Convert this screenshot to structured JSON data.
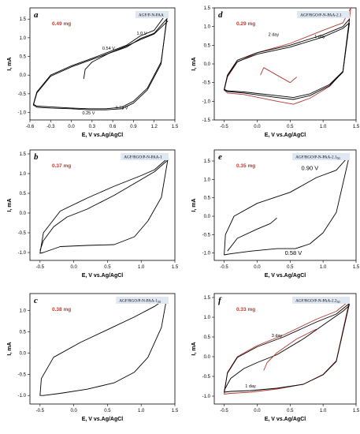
{
  "chart_data": [
    {
      "id": "a",
      "type": "line",
      "panel_label": "a",
      "title": "AGF/P-N-PAA",
      "mass_label": "0.49 mg",
      "xlabel": "E, V vs.Ag/AgCl",
      "ylabel": "I, mA",
      "xlim": [
        -0.6,
        1.5
      ],
      "ylim": [
        -1.2,
        1.8
      ],
      "xticks": [
        "-0.6",
        "-0.3",
        "0.0",
        "0.3",
        "0.6",
        "0.9",
        "1.2",
        "1.5"
      ],
      "xtick_values": [
        -0.6,
        -0.3,
        0.0,
        0.3,
        0.6,
        0.9,
        1.2,
        1.5
      ],
      "yticks": [
        "-1.0",
        "-0.5",
        "0.0",
        "0.5",
        "1.0",
        "1.5"
      ],
      "ytick_values": [
        -1.0,
        -0.5,
        0.0,
        0.5,
        1.0,
        1.5
      ],
      "annotations": [
        {
          "text": "1.0 V",
          "x": 1.02,
          "y": 1.08
        },
        {
          "text": "0.54 V",
          "x": 0.54,
          "y": 0.68
        },
        {
          "text": "0.73 V",
          "x": 0.73,
          "y": -0.92
        },
        {
          "text": "0.25 V",
          "x": 0.25,
          "y": -1.05
        }
      ],
      "series": [
        {
          "color": "#000000",
          "x": [
            1.4,
            1.2,
            1.0,
            0.8,
            0.54,
            0.3,
            0.0,
            -0.3,
            -0.5,
            -0.55,
            -0.5,
            -0.3,
            0.0,
            0.25,
            0.5,
            0.73,
            0.9,
            1.1,
            1.3,
            1.4
          ],
          "y": [
            1.7,
            1.2,
            1.05,
            0.8,
            0.62,
            0.45,
            0.25,
            0.0,
            -0.45,
            -0.78,
            -0.83,
            -0.85,
            -0.88,
            -0.9,
            -0.9,
            -0.86,
            -0.7,
            -0.35,
            0.35,
            1.7
          ]
        },
        {
          "color": "#000000",
          "x": [
            1.38,
            1.2,
            1.0,
            0.8,
            0.54,
            0.3,
            0.0,
            -0.3,
            -0.5,
            -0.55,
            -0.5,
            -0.3,
            0.0,
            0.25,
            0.5,
            0.73,
            0.9,
            1.1,
            1.3,
            1.38
          ],
          "y": [
            1.5,
            1.12,
            0.98,
            0.75,
            0.58,
            0.42,
            0.22,
            -0.03,
            -0.48,
            -0.8,
            -0.86,
            -0.88,
            -0.9,
            -0.93,
            -0.93,
            -0.9,
            -0.75,
            -0.4,
            0.3,
            1.5
          ]
        },
        {
          "color": "#000000",
          "x": [
            0.18,
            0.2,
            0.3,
            0.54,
            0.8,
            1.0,
            1.2,
            1.4
          ],
          "y": [
            -0.1,
            0.15,
            0.35,
            0.58,
            0.78,
            0.95,
            1.1,
            1.45
          ]
        }
      ]
    },
    {
      "id": "b",
      "type": "line",
      "panel_label": "b",
      "title": "AGF/RGO/P-N-PAA-1",
      "mass_label": "0.37 mg",
      "xlabel": "E, V vs.Ag/AgCl",
      "ylabel": "I, mA",
      "xlim": [
        -0.65,
        1.5
      ],
      "ylim": [
        -1.2,
        1.6
      ],
      "xticks": [
        "-0.5",
        "0.0",
        "0.5",
        "1.0",
        "1.5"
      ],
      "xtick_values": [
        -0.5,
        0.0,
        0.5,
        1.0,
        1.5
      ],
      "yticks": [
        "-1.0",
        "-0.5",
        "0.0",
        "0.5",
        "1.0",
        "1.5"
      ],
      "ytick_values": [
        -1.0,
        -0.5,
        0.0,
        0.5,
        1.0,
        1.5
      ],
      "annotations": [],
      "series": [
        {
          "color": "#000000",
          "x": [
            1.4,
            1.2,
            1.0,
            0.6,
            0.2,
            -0.2,
            -0.45,
            -0.5,
            -0.45,
            -0.2,
            0.2,
            0.6,
            0.9,
            1.1,
            1.3,
            1.4
          ],
          "y": [
            1.4,
            1.1,
            0.95,
            0.68,
            0.38,
            0.05,
            -0.5,
            -1.02,
            -1.0,
            -0.85,
            -0.82,
            -0.8,
            -0.6,
            -0.2,
            0.4,
            1.4
          ]
        },
        {
          "color": "#000000",
          "x": [
            -0.5,
            -0.45,
            -0.3,
            -0.1,
            0.2,
            0.6,
            1.0,
            1.2,
            1.4
          ],
          "y": [
            -0.95,
            -0.7,
            -0.35,
            -0.1,
            0.1,
            0.45,
            0.85,
            1.05,
            1.35
          ]
        }
      ]
    },
    {
      "id": "c",
      "type": "line",
      "panel_label": "c",
      "title": "AGF/RGO/P-N-PAA-1",
      "title_sub": "50",
      "mass_label": "0.38 mg",
      "xlabel": "E, V vs.Ag/AgCl",
      "ylabel": "I, mA",
      "xlim": [
        -0.65,
        1.5
      ],
      "ylim": [
        -1.2,
        1.4
      ],
      "xticks": [
        "-0.5",
        "0.0",
        "0.5",
        "1.0",
        "1.5"
      ],
      "xtick_values": [
        -0.5,
        0.0,
        0.5,
        1.0,
        1.5
      ],
      "yticks": [
        "-1.0",
        "-0.5",
        "0.0",
        "0.5",
        "1.0"
      ],
      "ytick_values": [
        -1.0,
        -0.5,
        0.0,
        0.5,
        1.0
      ],
      "annotations": [],
      "series": [
        {
          "color": "#000000",
          "x": [
            1.38,
            1.2,
            0.9,
            0.5,
            0.1,
            -0.3,
            -0.48,
            -0.5,
            -0.45,
            -0.2,
            0.2,
            0.6,
            0.9,
            1.1,
            1.3,
            1.38
          ],
          "y": [
            1.3,
            1.1,
            0.85,
            0.55,
            0.25,
            -0.1,
            -0.6,
            -1.0,
            -1.0,
            -0.95,
            -0.85,
            -0.7,
            -0.45,
            -0.1,
            0.6,
            1.3
          ]
        }
      ]
    },
    {
      "id": "d",
      "type": "line",
      "panel_label": "d",
      "title": "AGF/RGO/P-N-PAA-2.1",
      "mass_label": "0.29 mg",
      "xlabel": "E, V vs.Ag/AgCl",
      "ylabel": "I, mA",
      "xlim": [
        -0.65,
        1.5
      ],
      "ylim": [
        -1.5,
        1.5
      ],
      "xticks": [
        "-0.5",
        "0.0",
        "0.5",
        "1.0",
        "1.5"
      ],
      "xtick_values": [
        -0.5,
        0.0,
        0.5,
        1.0,
        1.5
      ],
      "yticks": [
        "-1.5",
        "-1.0",
        "-0.5",
        "0.0",
        "0.5",
        "1.0",
        "1.5"
      ],
      "ytick_values": [
        -1.5,
        -1.0,
        -0.5,
        0.0,
        0.5,
        1.0,
        1.5
      ],
      "annotations": [
        {
          "text": "2 day",
          "x": 0.25,
          "y": 0.75
        },
        {
          "text": "1 day",
          "x": 0.95,
          "y": 0.7
        }
      ],
      "series": [
        {
          "color": "#b03a2e",
          "x": [
            1.42,
            1.3,
            1.0,
            0.5,
            0.0,
            -0.3,
            -0.45,
            -0.5,
            -0.45,
            -0.2,
            0.3,
            0.55,
            0.8,
            1.1,
            1.3,
            1.42
          ],
          "y": [
            1.5,
            1.1,
            0.9,
            0.55,
            0.3,
            0.05,
            -0.35,
            -0.7,
            -0.78,
            -0.82,
            -1.0,
            -1.08,
            -0.92,
            -0.6,
            -0.2,
            1.5
          ]
        },
        {
          "color": "#000000",
          "x": [
            1.4,
            1.3,
            1.0,
            0.5,
            0.0,
            -0.3,
            -0.45,
            -0.5,
            -0.45,
            -0.2,
            0.3,
            0.55,
            0.8,
            1.1,
            1.3,
            1.4
          ],
          "y": [
            1.2,
            1.0,
            0.78,
            0.5,
            0.3,
            0.1,
            -0.3,
            -0.68,
            -0.72,
            -0.75,
            -0.85,
            -0.9,
            -0.8,
            -0.55,
            -0.2,
            1.2
          ]
        },
        {
          "color": "#000000",
          "x": [
            1.4,
            1.3,
            1.0,
            0.5,
            0.0,
            -0.3,
            -0.45,
            -0.5,
            -0.45,
            -0.2,
            0.3,
            0.55,
            0.8,
            1.1,
            1.3,
            1.4
          ],
          "y": [
            1.1,
            0.95,
            0.72,
            0.45,
            0.26,
            0.06,
            -0.32,
            -0.7,
            -0.74,
            -0.78,
            -0.9,
            -0.95,
            -0.85,
            -0.58,
            -0.22,
            1.1
          ]
        },
        {
          "color": "#b03a2e",
          "x": [
            0.05,
            0.1,
            0.3,
            0.5,
            0.6
          ],
          "y": [
            -0.3,
            -0.1,
            -0.3,
            -0.5,
            -0.35
          ]
        }
      ]
    },
    {
      "id": "e",
      "type": "line",
      "panel_label": "e",
      "title": "AGF/RGO/P-N-PAA-2.1",
      "title_sub": "50",
      "mass_label": "0.35 mg",
      "xlabel": "E, V vs.Ag/AgCl",
      "ylabel": "I, mA",
      "xlim": [
        -0.65,
        1.5
      ],
      "ylim": [
        -1.2,
        1.8
      ],
      "xticks": [
        "-0.5",
        "0.0",
        "0.5",
        "1.0",
        "1.5"
      ],
      "xtick_values": [
        -0.5,
        0.0,
        0.5,
        1.0,
        1.5
      ],
      "yticks": [
        "-1.0",
        "-0.5",
        "0.0",
        "0.5",
        "1.0",
        "1.5"
      ],
      "ytick_values": [
        -1.0,
        -0.5,
        0.0,
        0.5,
        1.0,
        1.5
      ],
      "annotations": [
        {
          "text": "0.90 V",
          "x": 0.8,
          "y": 1.25
        },
        {
          "text": "0.58 V",
          "x": 0.55,
          "y": -1.05
        }
      ],
      "series": [
        {
          "color": "#000000",
          "x": [
            1.4,
            1.2,
            0.9,
            0.5,
            0.0,
            -0.35,
            -0.48,
            -0.5,
            -0.4,
            -0.1,
            0.3,
            0.58,
            0.8,
            1.0,
            1.2,
            1.4
          ],
          "y": [
            1.65,
            1.25,
            1.05,
            0.65,
            0.35,
            0.0,
            -0.5,
            -1.05,
            -1.02,
            -0.95,
            -0.88,
            -0.88,
            -0.75,
            -0.45,
            0.1,
            1.65
          ]
        },
        {
          "color": "#000000",
          "x": [
            -0.45,
            -0.3,
            0.0,
            0.2,
            0.3
          ],
          "y": [
            -0.95,
            -0.6,
            -0.35,
            -0.2,
            -0.05
          ]
        }
      ]
    },
    {
      "id": "f",
      "type": "line",
      "panel_label": "f",
      "title": "AGF/RGO/P-N-PAA-2.2",
      "title_sub": "50",
      "mass_label": "0.33 mg",
      "xlabel": "E, V vs.Ag/AgCl",
      "ylabel": "I, mA",
      "xlim": [
        -0.65,
        1.5
      ],
      "ylim": [
        -1.2,
        1.6
      ],
      "xticks": [
        "-0.5",
        "0.0",
        "0.5",
        "1.0",
        "1.5"
      ],
      "xtick_values": [
        -0.5,
        0.0,
        0.5,
        1.0,
        1.5
      ],
      "yticks": [
        "-1.0",
        "-0.5",
        "0.0",
        "0.5",
        "1.0",
        "1.5"
      ],
      "ytick_values": [
        -1.0,
        -0.5,
        0.0,
        0.5,
        1.0,
        1.5
      ],
      "annotations": [
        {
          "text": "3 day",
          "x": 0.3,
          "y": 0.5
        },
        {
          "text": "1 day",
          "x": -0.1,
          "y": -0.78
        }
      ],
      "series": [
        {
          "color": "#b03a2e",
          "x": [
            1.4,
            1.2,
            0.9,
            0.4,
            0.0,
            -0.3,
            -0.45,
            -0.5,
            -0.4,
            -0.1,
            0.3,
            0.7,
            1.0,
            1.2,
            1.4
          ],
          "y": [
            1.42,
            1.15,
            0.95,
            0.55,
            0.28,
            0.0,
            -0.4,
            -0.95,
            -0.93,
            -0.9,
            -0.82,
            -0.7,
            -0.45,
            -0.1,
            1.42
          ]
        },
        {
          "color": "#000000",
          "x": [
            1.4,
            1.2,
            0.9,
            0.4,
            0.0,
            -0.3,
            -0.45,
            -0.5,
            -0.4,
            -0.1,
            0.3,
            0.7,
            1.0,
            1.2,
            1.4
          ],
          "y": [
            1.35,
            1.08,
            0.88,
            0.5,
            0.25,
            -0.02,
            -0.42,
            -0.9,
            -0.88,
            -0.86,
            -0.8,
            -0.7,
            -0.46,
            -0.12,
            1.35
          ]
        },
        {
          "color": "#000000",
          "x": [
            -0.5,
            -0.4,
            -0.2,
            0.0,
            0.3,
            0.7,
            1.0,
            1.3,
            1.4
          ],
          "y": [
            -0.85,
            -0.55,
            -0.3,
            -0.15,
            0.05,
            0.45,
            0.8,
            1.15,
            1.3
          ]
        },
        {
          "color": "#b03a2e",
          "x": [
            0.1,
            0.15,
            0.3,
            0.6,
            0.9
          ],
          "y": [
            -0.35,
            -0.15,
            0.1,
            0.45,
            0.7
          ]
        }
      ]
    }
  ]
}
